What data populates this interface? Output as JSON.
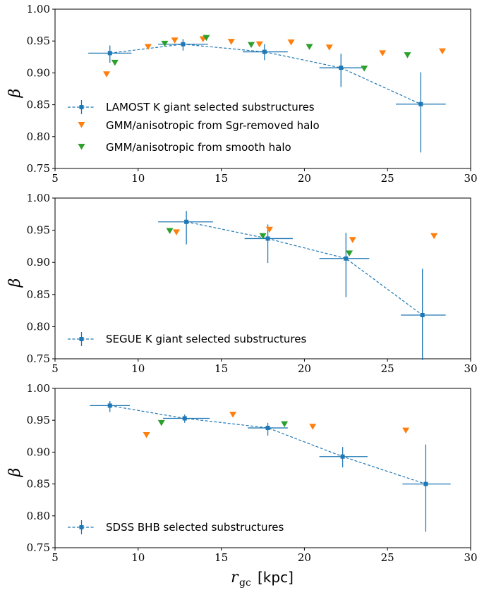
{
  "colors": {
    "lamost": "#1f77b4",
    "sgr": "#ff7f0e",
    "smooth": "#2ca02c",
    "axis": "#000000"
  },
  "xlabel": {
    "symbol": "r",
    "subscript": "gc",
    "unit": "[kpc]"
  },
  "chart_data": [
    {
      "type": "scatter",
      "title": "",
      "xlim": [
        5,
        30
      ],
      "ylim": [
        0.75,
        1.0
      ],
      "xticks": [
        5,
        10,
        15,
        20,
        25,
        30
      ],
      "yticks": [
        0.75,
        0.8,
        0.85,
        0.9,
        0.95,
        1.0
      ],
      "ytick_labels": [
        "0.75",
        "0.80",
        "0.85",
        "0.90",
        "0.95",
        "1.00"
      ],
      "ylabel": "β",
      "legend_position": "lower-left",
      "series": [
        {
          "name": "LAMOST K giant selected substructures",
          "style": "errorbar-dashed-square",
          "color": "#1f77b4",
          "points": [
            {
              "x": 8.3,
              "y": 0.931,
              "xerr": [
                1.3,
                1.3
              ],
              "yerr": [
                0.015,
                0.012
              ]
            },
            {
              "x": 12.7,
              "y": 0.945,
              "xerr": [
                1.5,
                1.5
              ],
              "yerr": [
                0.01,
                0.008
              ]
            },
            {
              "x": 17.6,
              "y": 0.933,
              "xerr": [
                1.3,
                1.4
              ],
              "yerr": [
                0.013,
                0.012
              ]
            },
            {
              "x": 22.2,
              "y": 0.908,
              "xerr": [
                1.3,
                1.3
              ],
              "yerr": [
                0.03,
                0.022
              ]
            },
            {
              "x": 27.0,
              "y": 0.851,
              "xerr": [
                1.5,
                1.5
              ],
              "yerr": [
                0.076,
                0.05
              ]
            }
          ]
        },
        {
          "name": "GMM/anisotropic from Sgr-removed halo",
          "style": "triangle-down",
          "color": "#ff7f0e",
          "points": [
            {
              "x": 8.1,
              "y": 0.898
            },
            {
              "x": 10.6,
              "y": 0.941
            },
            {
              "x": 12.2,
              "y": 0.951
            },
            {
              "x": 13.9,
              "y": 0.953
            },
            {
              "x": 15.6,
              "y": 0.949
            },
            {
              "x": 17.3,
              "y": 0.945
            },
            {
              "x": 19.2,
              "y": 0.948
            },
            {
              "x": 21.5,
              "y": 0.94
            },
            {
              "x": 24.7,
              "y": 0.931
            },
            {
              "x": 28.3,
              "y": 0.934
            }
          ]
        },
        {
          "name": "GMM/anisotropic from smooth halo",
          "style": "triangle-down",
          "color": "#2ca02c",
          "points": [
            {
              "x": 8.6,
              "y": 0.916
            },
            {
              "x": 11.6,
              "y": 0.946
            },
            {
              "x": 14.1,
              "y": 0.955
            },
            {
              "x": 16.8,
              "y": 0.944
            },
            {
              "x": 20.3,
              "y": 0.941
            },
            {
              "x": 23.6,
              "y": 0.907
            },
            {
              "x": 26.2,
              "y": 0.928
            }
          ]
        }
      ]
    },
    {
      "type": "scatter",
      "title": "",
      "xlim": [
        5,
        30
      ],
      "ylim": [
        0.75,
        1.0
      ],
      "xticks": [
        5,
        10,
        15,
        20,
        25,
        30
      ],
      "yticks": [
        0.75,
        0.8,
        0.85,
        0.9,
        0.95,
        1.0
      ],
      "ytick_labels": [
        "0.75",
        "0.80",
        "0.85",
        "0.90",
        "0.95",
        "1.00"
      ],
      "ylabel": "β",
      "legend_position": "lower-left",
      "series": [
        {
          "name": "SEGUE K giant selected substructures",
          "style": "errorbar-dashed-square",
          "color": "#1f77b4",
          "points": [
            {
              "x": 12.9,
              "y": 0.963,
              "xerr": [
                1.7,
                1.6
              ],
              "yerr": [
                0.035,
                0.017
              ]
            },
            {
              "x": 17.8,
              "y": 0.937,
              "xerr": [
                1.4,
                1.5
              ],
              "yerr": [
                0.038,
                0.022
              ]
            },
            {
              "x": 22.5,
              "y": 0.906,
              "xerr": [
                1.6,
                1.4
              ],
              "yerr": [
                0.06,
                0.04
              ]
            },
            {
              "x": 27.1,
              "y": 0.818,
              "xerr": [
                1.3,
                1.4
              ],
              "yerr": [
                0.07,
                0.072
              ]
            }
          ]
        },
        {
          "name": "",
          "style": "triangle-down",
          "color": "#ff7f0e",
          "points": [
            {
              "x": 12.3,
              "y": 0.947
            },
            {
              "x": 17.9,
              "y": 0.951
            },
            {
              "x": 22.9,
              "y": 0.935
            },
            {
              "x": 27.8,
              "y": 0.941
            }
          ]
        },
        {
          "name": "",
          "style": "triangle-down",
          "color": "#2ca02c",
          "points": [
            {
              "x": 11.9,
              "y": 0.949
            },
            {
              "x": 17.5,
              "y": 0.941
            },
            {
              "x": 22.7,
              "y": 0.914
            }
          ]
        }
      ]
    },
    {
      "type": "scatter",
      "title": "",
      "xlim": [
        5,
        30
      ],
      "ylim": [
        0.75,
        1.0
      ],
      "xticks": [
        5,
        10,
        15,
        20,
        25,
        30
      ],
      "yticks": [
        0.75,
        0.8,
        0.85,
        0.9,
        0.95,
        1.0
      ],
      "ytick_labels": [
        "0.75",
        "0.80",
        "0.85",
        "0.90",
        "0.95",
        "1.00"
      ],
      "ylabel": "β",
      "legend_position": "lower-left",
      "series": [
        {
          "name": "SDSS BHB selected substructures",
          "style": "errorbar-dashed-square",
          "color": "#1f77b4",
          "points": [
            {
              "x": 8.3,
              "y": 0.973,
              "xerr": [
                1.2,
                1.2
              ],
              "yerr": [
                0.01,
                0.007
              ]
            },
            {
              "x": 12.8,
              "y": 0.953,
              "xerr": [
                1.3,
                1.5
              ],
              "yerr": [
                0.007,
                0.006
              ]
            },
            {
              "x": 17.8,
              "y": 0.938,
              "xerr": [
                1.2,
                1.2
              ],
              "yerr": [
                0.012,
                0.008
              ]
            },
            {
              "x": 22.3,
              "y": 0.893,
              "xerr": [
                1.4,
                1.5
              ],
              "yerr": [
                0.017,
                0.015
              ]
            },
            {
              "x": 27.3,
              "y": 0.85,
              "xerr": [
                1.4,
                1.5
              ],
              "yerr": [
                0.075,
                0.062
              ]
            }
          ]
        },
        {
          "name": "",
          "style": "triangle-down",
          "color": "#ff7f0e",
          "points": [
            {
              "x": 10.5,
              "y": 0.927
            },
            {
              "x": 15.7,
              "y": 0.959
            },
            {
              "x": 20.5,
              "y": 0.94
            },
            {
              "x": 26.1,
              "y": 0.934
            }
          ]
        },
        {
          "name": "",
          "style": "triangle-down",
          "color": "#2ca02c",
          "points": [
            {
              "x": 11.4,
              "y": 0.946
            },
            {
              "x": 18.8,
              "y": 0.944
            }
          ]
        }
      ]
    }
  ]
}
